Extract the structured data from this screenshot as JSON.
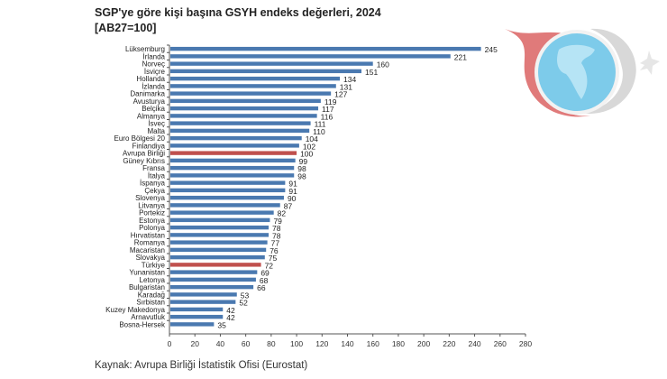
{
  "chart_data": {
    "type": "bar",
    "orientation": "horizontal",
    "title": "SGP'ye göre kişi başına GSYH endeks değerleri, 2024",
    "subtitle": "[AB27=100]",
    "categories": [
      "Lüksemburg",
      "İrlanda",
      "Norveç",
      "İsviçre",
      "Hollanda",
      "İzlanda",
      "Danimarka",
      "Avusturya",
      "Belçika",
      "Almanya",
      "İsveç",
      "Malta",
      "Euro Bölgesi 20",
      "Finlandiya",
      "Avrupa Birliği",
      "Güney Kıbrıs",
      "Fransa",
      "İtalya",
      "İspanya",
      "Çekya",
      "Slovenya",
      "Litvanya",
      "Portekiz",
      "Estonya",
      "Polonya",
      "Hırvatistan",
      "Romanya",
      "Macaristan",
      "Slovakya",
      "Türkiye",
      "Yunanistan",
      "Letonya",
      "Bulgaristan",
      "Karadağ",
      "Sırbistan",
      "Kuzey Makedonya",
      "Arnavutluk",
      "Bosna-Hersek"
    ],
    "values": [
      245,
      221,
      160,
      151,
      134,
      131,
      127,
      119,
      117,
      116,
      111,
      110,
      104,
      102,
      100,
      99,
      98,
      98,
      91,
      91,
      90,
      87,
      82,
      79,
      78,
      78,
      77,
      76,
      75,
      72,
      69,
      68,
      66,
      53,
      52,
      42,
      42,
      35
    ],
    "highlighted": [
      "Avrupa Birliği",
      "Türkiye"
    ],
    "xlim": [
      0,
      280
    ],
    "xticks": [
      0,
      20,
      40,
      60,
      80,
      100,
      120,
      140,
      160,
      180,
      200,
      220,
      240,
      260,
      280
    ],
    "grid": false,
    "colors": {
      "bar": "#4a79b0",
      "highlight": "#c0504d"
    }
  },
  "source": "Kaynak: Avrupa Birliği İstatistik Ofisi (Eurostat)"
}
